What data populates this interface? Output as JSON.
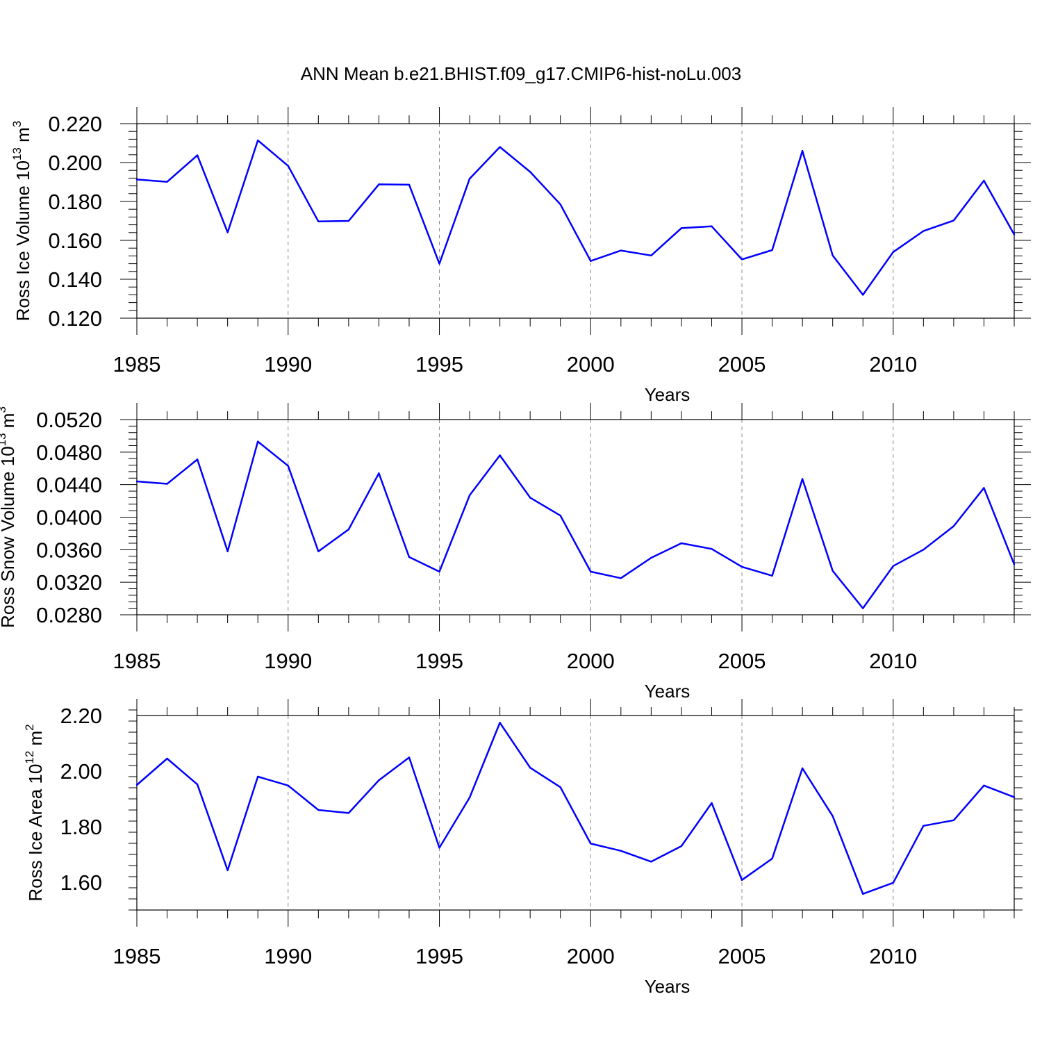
{
  "title": "ANN Mean b.e21.BHIST.f09_g17.CMIP6-hist-noLu.003",
  "colors": {
    "series": "#0000ff",
    "axis": "#000000",
    "gridline": "#888888"
  },
  "chart_data": [
    {
      "type": "line",
      "ylabel_main": "Ross Ice Volume 10",
      "ylabel_exp": "13",
      "ylabel_unit": "m",
      "ylabel_unit_exp": "3",
      "xlabel": "Years",
      "xlim": [
        1985,
        2014
      ],
      "ylim": [
        0.12,
        0.22
      ],
      "yticks": [
        0.12,
        0.14,
        0.16,
        0.18,
        0.2,
        0.22
      ],
      "ytick_labels": [
        "0.120",
        "0.140",
        "0.160",
        "0.180",
        "0.200",
        "0.220"
      ],
      "xticks": [
        1985,
        1990,
        1995,
        2000,
        2005,
        2010
      ],
      "xtick_labels": [
        "1985",
        "1990",
        "1995",
        "2000",
        "2005",
        "2010"
      ],
      "x": [
        1985,
        1986,
        1987,
        1988,
        1989,
        1990,
        1991,
        1992,
        1993,
        1994,
        1995,
        1996,
        1997,
        1998,
        1999,
        2000,
        2001,
        2002,
        2003,
        2004,
        2005,
        2006,
        2007,
        2008,
        2009,
        2010,
        2011,
        2012,
        2013,
        2014
      ],
      "values": [
        0.1913,
        0.1901,
        0.2037,
        0.1641,
        0.2114,
        0.1983,
        0.1697,
        0.17,
        0.1888,
        0.1886,
        0.148,
        0.1917,
        0.208,
        0.1952,
        0.1785,
        0.1494,
        0.1548,
        0.1522,
        0.1663,
        0.1672,
        0.1502,
        0.155,
        0.206,
        0.1522,
        0.132,
        0.154,
        0.1648,
        0.1702,
        0.1907,
        0.163
      ]
    },
    {
      "type": "line",
      "ylabel_main": "Ross Snow Volume 10",
      "ylabel_exp": "13",
      "ylabel_unit": "m",
      "ylabel_unit_exp": "3",
      "xlabel": "Years",
      "xlim": [
        1985,
        2014
      ],
      "ylim": [
        0.028,
        0.052
      ],
      "yticks": [
        0.028,
        0.032,
        0.036,
        0.04,
        0.044,
        0.048,
        0.052
      ],
      "ytick_labels": [
        "0.0280",
        "0.0320",
        "0.0360",
        "0.0400",
        "0.0440",
        "0.0480",
        "0.0520"
      ],
      "xticks": [
        1985,
        1990,
        1995,
        2000,
        2005,
        2010
      ],
      "xtick_labels": [
        "1985",
        "1990",
        "1995",
        "2000",
        "2005",
        "2010"
      ],
      "x": [
        1985,
        1986,
        1987,
        1988,
        1989,
        1990,
        1991,
        1992,
        1993,
        1994,
        1995,
        1996,
        1997,
        1998,
        1999,
        2000,
        2001,
        2002,
        2003,
        2004,
        2005,
        2006,
        2007,
        2008,
        2009,
        2010,
        2011,
        2012,
        2013,
        2014
      ],
      "values": [
        0.0444,
        0.0441,
        0.0471,
        0.0358,
        0.0493,
        0.0463,
        0.0358,
        0.0385,
        0.0454,
        0.0351,
        0.0333,
        0.0427,
        0.0476,
        0.0424,
        0.0402,
        0.0333,
        0.0325,
        0.035,
        0.0368,
        0.0361,
        0.0339,
        0.0328,
        0.0447,
        0.0334,
        0.0288,
        0.034,
        0.036,
        0.0389,
        0.0436,
        0.0342
      ]
    },
    {
      "type": "line",
      "ylabel_main": "Ross Ice Area 10",
      "ylabel_exp": "12",
      "ylabel_unit": "m",
      "ylabel_unit_exp": "2",
      "xlabel": "Years",
      "xlim": [
        1985,
        2014
      ],
      "ylim": [
        1.5,
        2.2
      ],
      "yticks": [
        1.6,
        1.8,
        2.0,
        2.2
      ],
      "ytick_labels": [
        "1.60",
        "1.80",
        "2.00",
        "2.20"
      ],
      "xticks": [
        1985,
        1990,
        1995,
        2000,
        2005,
        2010
      ],
      "xtick_labels": [
        "1985",
        "1990",
        "1995",
        "2000",
        "2005",
        "2010"
      ],
      "x": [
        1985,
        1986,
        1987,
        1988,
        1989,
        1990,
        1991,
        1992,
        1993,
        1994,
        1995,
        1996,
        1997,
        1998,
        1999,
        2000,
        2001,
        2002,
        2003,
        2004,
        2005,
        2006,
        2007,
        2008,
        2009,
        2010,
        2011,
        2012,
        2013,
        2014
      ],
      "values": [
        1.95,
        2.045,
        1.952,
        1.643,
        1.98,
        1.948,
        1.86,
        1.849,
        1.967,
        2.049,
        1.724,
        1.905,
        2.174,
        2.012,
        1.942,
        1.739,
        1.713,
        1.674,
        1.73,
        1.885,
        1.608,
        1.685,
        2.01,
        1.838,
        1.558,
        1.598,
        1.803,
        1.823,
        1.948,
        1.906
      ]
    }
  ]
}
